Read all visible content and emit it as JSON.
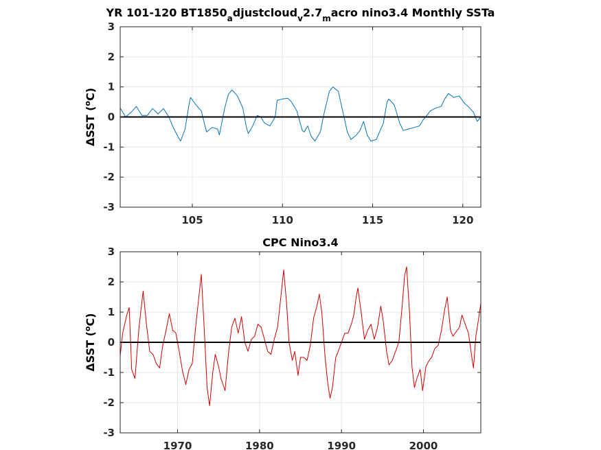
{
  "chart_data": [
    {
      "type": "line",
      "title_parts": [
        {
          "text": "YR 101-120 BT1850",
          "sub": false
        },
        {
          "text": "a",
          "sub": true
        },
        {
          "text": "djustcloud",
          "sub": false
        },
        {
          "text": "v",
          "sub": true
        },
        {
          "text": "2.7",
          "sub": false
        },
        {
          "text": "m",
          "sub": true
        },
        {
          "text": "acro nino3.4 Monthly SSTa",
          "sub": false
        }
      ],
      "ylabel": "ΔSST (",
      "ylabel_sup": "o",
      "ylabel_end": "C)",
      "xlim": [
        101,
        121
      ],
      "ylim": [
        -3,
        3
      ],
      "xticks": [
        "105",
        "110",
        "115",
        "120"
      ],
      "yticks": [
        "3",
        "2",
        "1",
        "0",
        "-1",
        "-2",
        "-3"
      ],
      "grid": true,
      "zero_line": true,
      "series": [
        {
          "color": "#0072BD",
          "points": [
            [
              101.0,
              0.3
            ],
            [
              101.3,
              0.0
            ],
            [
              101.6,
              0.15
            ],
            [
              101.9,
              0.35
            ],
            [
              102.2,
              0.05
            ],
            [
              102.5,
              0.05
            ],
            [
              102.8,
              0.28
            ],
            [
              103.1,
              0.1
            ],
            [
              103.4,
              0.28
            ],
            [
              103.7,
              0.0
            ],
            [
              103.9,
              -0.3
            ],
            [
              104.2,
              -0.65
            ],
            [
              104.35,
              -0.8
            ],
            [
              104.6,
              -0.4
            ],
            [
              104.8,
              0.35
            ],
            [
              104.9,
              0.65
            ],
            [
              105.2,
              0.4
            ],
            [
              105.5,
              0.2
            ],
            [
              105.7,
              -0.3
            ],
            [
              105.8,
              -0.5
            ],
            [
              106.1,
              -0.35
            ],
            [
              106.4,
              -0.4
            ],
            [
              106.5,
              -0.6
            ],
            [
              106.8,
              0.3
            ],
            [
              107.0,
              0.75
            ],
            [
              107.2,
              0.9
            ],
            [
              107.5,
              0.7
            ],
            [
              107.8,
              0.3
            ],
            [
              108.0,
              -0.35
            ],
            [
              108.1,
              -0.55
            ],
            [
              108.35,
              -0.3
            ],
            [
              108.6,
              0.05
            ],
            [
              108.8,
              0.0
            ],
            [
              109.0,
              -0.2
            ],
            [
              109.3,
              -0.3
            ],
            [
              109.6,
              0.0
            ],
            [
              109.7,
              0.55
            ],
            [
              110.0,
              0.6
            ],
            [
              110.3,
              0.62
            ],
            [
              110.5,
              0.5
            ],
            [
              110.8,
              0.2
            ],
            [
              111.1,
              -0.45
            ],
            [
              111.2,
              -0.5
            ],
            [
              111.4,
              -0.3
            ],
            [
              111.6,
              -0.65
            ],
            [
              111.8,
              -0.8
            ],
            [
              112.1,
              -0.5
            ],
            [
              112.3,
              0.1
            ],
            [
              112.6,
              0.85
            ],
            [
              112.8,
              1.0
            ],
            [
              113.1,
              0.85
            ],
            [
              113.3,
              0.3
            ],
            [
              113.6,
              -0.5
            ],
            [
              113.8,
              -0.75
            ],
            [
              114.1,
              -0.6
            ],
            [
              114.3,
              -0.45
            ],
            [
              114.5,
              -0.15
            ],
            [
              114.7,
              -0.6
            ],
            [
              114.9,
              -0.8
            ],
            [
              115.2,
              -0.75
            ],
            [
              115.6,
              -0.2
            ],
            [
              115.8,
              0.5
            ],
            [
              115.9,
              0.6
            ],
            [
              116.2,
              0.4
            ],
            [
              116.5,
              -0.2
            ],
            [
              116.7,
              -0.45
            ],
            [
              117.0,
              -0.4
            ],
            [
              117.3,
              -0.35
            ],
            [
              117.6,
              -0.3
            ],
            [
              117.8,
              -0.1
            ],
            [
              118.0,
              0.05
            ],
            [
              118.2,
              0.2
            ],
            [
              118.5,
              0.3
            ],
            [
              118.8,
              0.35
            ],
            [
              119.0,
              0.6
            ],
            [
              119.2,
              0.78
            ],
            [
              119.5,
              0.65
            ],
            [
              119.8,
              0.7
            ],
            [
              120.1,
              0.45
            ],
            [
              120.3,
              0.35
            ],
            [
              120.6,
              0.15
            ],
            [
              120.8,
              -0.15
            ],
            [
              121.0,
              0.0
            ]
          ]
        }
      ]
    },
    {
      "type": "line",
      "title_parts": [
        {
          "text": "CPC Nino3.4",
          "sub": false
        }
      ],
      "ylabel": "ΔSST (",
      "ylabel_sup": "o",
      "ylabel_end": "C)",
      "xlim": [
        1963,
        2007
      ],
      "ylim": [
        -3,
        3
      ],
      "xticks": [
        "1970",
        "1980",
        "1990",
        "2000"
      ],
      "yticks": [
        "3",
        "2",
        "1",
        "0",
        "-1",
        "-2",
        "-3"
      ],
      "grid": true,
      "zero_line": true,
      "series": [
        {
          "color": "#D00000",
          "points": [
            [
              1963.0,
              -0.45
            ],
            [
              1963.3,
              0.3
            ],
            [
              1963.8,
              0.9
            ],
            [
              1964.1,
              1.15
            ],
            [
              1964.4,
              -0.9
            ],
            [
              1964.8,
              -1.2
            ],
            [
              1965.3,
              0.5
            ],
            [
              1965.8,
              1.7
            ],
            [
              1966.2,
              0.6
            ],
            [
              1966.6,
              -0.3
            ],
            [
              1967.0,
              -0.4
            ],
            [
              1967.4,
              -0.7
            ],
            [
              1967.8,
              -0.85
            ],
            [
              1968.2,
              -0.1
            ],
            [
              1968.6,
              0.4
            ],
            [
              1969.0,
              0.95
            ],
            [
              1969.4,
              0.4
            ],
            [
              1969.8,
              0.3
            ],
            [
              1970.2,
              -0.3
            ],
            [
              1970.6,
              -0.95
            ],
            [
              1971.0,
              -1.4
            ],
            [
              1971.4,
              -0.9
            ],
            [
              1971.8,
              -0.7
            ],
            [
              1972.2,
              0.5
            ],
            [
              1972.6,
              1.5
            ],
            [
              1972.9,
              2.25
            ],
            [
              1973.3,
              0.2
            ],
            [
              1973.6,
              -1.5
            ],
            [
              1973.9,
              -2.1
            ],
            [
              1974.3,
              -1.0
            ],
            [
              1974.6,
              -0.4
            ],
            [
              1975.0,
              -0.8
            ],
            [
              1975.3,
              -1.2
            ],
            [
              1975.8,
              -1.6
            ],
            [
              1976.2,
              -0.4
            ],
            [
              1976.6,
              0.5
            ],
            [
              1977.0,
              0.8
            ],
            [
              1977.4,
              0.3
            ],
            [
              1977.8,
              0.85
            ],
            [
              1978.2,
              0.0
            ],
            [
              1978.6,
              -0.3
            ],
            [
              1979.0,
              0.1
            ],
            [
              1979.4,
              0.2
            ],
            [
              1979.8,
              0.6
            ],
            [
              1980.2,
              0.5
            ],
            [
              1980.6,
              0.1
            ],
            [
              1981.0,
              -0.3
            ],
            [
              1981.4,
              -0.4
            ],
            [
              1981.8,
              0.1
            ],
            [
              1982.2,
              0.5
            ],
            [
              1982.6,
              1.5
            ],
            [
              1982.95,
              2.4
            ],
            [
              1983.3,
              1.3
            ],
            [
              1983.6,
              0.0
            ],
            [
              1984.0,
              -0.6
            ],
            [
              1984.3,
              -0.3
            ],
            [
              1984.7,
              -1.1
            ],
            [
              1985.0,
              -0.5
            ],
            [
              1985.4,
              -0.5
            ],
            [
              1985.8,
              -0.6
            ],
            [
              1986.2,
              -0.1
            ],
            [
              1986.6,
              0.8
            ],
            [
              1987.0,
              1.2
            ],
            [
              1987.3,
              1.6
            ],
            [
              1987.6,
              1.0
            ],
            [
              1988.0,
              -0.5
            ],
            [
              1988.3,
              -1.3
            ],
            [
              1988.6,
              -1.85
            ],
            [
              1988.9,
              -1.5
            ],
            [
              1989.3,
              -0.5
            ],
            [
              1989.6,
              -0.3
            ],
            [
              1990.0,
              0.0
            ],
            [
              1990.4,
              0.3
            ],
            [
              1990.8,
              0.3
            ],
            [
              1991.2,
              0.6
            ],
            [
              1991.5,
              0.9
            ],
            [
              1991.8,
              1.5
            ],
            [
              1992.0,
              1.8
            ],
            [
              1992.4,
              1.0
            ],
            [
              1992.8,
              0.1
            ],
            [
              1993.2,
              0.4
            ],
            [
              1993.6,
              0.6
            ],
            [
              1994.0,
              0.1
            ],
            [
              1994.4,
              0.5
            ],
            [
              1994.8,
              1.2
            ],
            [
              1995.1,
              0.7
            ],
            [
              1995.5,
              -0.3
            ],
            [
              1995.8,
              -0.75
            ],
            [
              1996.2,
              -0.6
            ],
            [
              1996.6,
              -0.3
            ],
            [
              1997.0,
              0.0
            ],
            [
              1997.4,
              1.2
            ],
            [
              1997.7,
              2.2
            ],
            [
              1997.95,
              2.5
            ],
            [
              1998.3,
              1.0
            ],
            [
              1998.6,
              -0.8
            ],
            [
              1998.9,
              -1.5
            ],
            [
              1999.2,
              -1.2
            ],
            [
              1999.6,
              -0.9
            ],
            [
              1999.9,
              -1.6
            ],
            [
              2000.3,
              -0.8
            ],
            [
              2000.7,
              -0.6
            ],
            [
              2001.0,
              -0.5
            ],
            [
              2001.4,
              -0.2
            ],
            [
              2001.8,
              -0.1
            ],
            [
              2002.2,
              0.4
            ],
            [
              2002.6,
              1.1
            ],
            [
              2002.9,
              1.5
            ],
            [
              2003.3,
              0.4
            ],
            [
              2003.6,
              0.2
            ],
            [
              2004.0,
              0.35
            ],
            [
              2004.4,
              0.5
            ],
            [
              2004.7,
              0.9
            ],
            [
              2005.1,
              0.6
            ],
            [
              2005.5,
              0.3
            ],
            [
              2005.8,
              -0.3
            ],
            [
              2006.1,
              -0.85
            ],
            [
              2006.4,
              0.2
            ],
            [
              2006.8,
              0.9
            ],
            [
              2007.0,
              1.3
            ]
          ]
        }
      ]
    }
  ]
}
